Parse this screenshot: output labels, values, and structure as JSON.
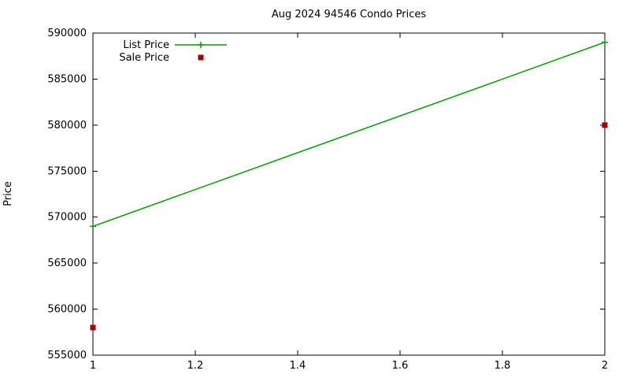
{
  "chart_data": {
    "type": "line",
    "title": "Aug 2024 94546 Condo Prices",
    "xlabel": "",
    "ylabel": "Price",
    "xlim": [
      1,
      2
    ],
    "ylim": [
      555000,
      590000
    ],
    "x_ticks": [
      1,
      1.2,
      1.4,
      1.6,
      1.8,
      2
    ],
    "y_ticks": [
      555000,
      560000,
      565000,
      570000,
      575000,
      580000,
      585000,
      590000
    ],
    "grid": false,
    "legend_position": "top-left-inside",
    "series": [
      {
        "name": "List Price",
        "type": "linespoints",
        "marker": "plus",
        "color": "#00a000",
        "x": [
          1,
          2
        ],
        "values": [
          569000,
          589000
        ]
      },
      {
        "name": "Sale Price",
        "type": "points",
        "marker": "square",
        "color": "#aa0000",
        "x": [
          1,
          2
        ],
        "values": [
          558000,
          580000
        ]
      }
    ]
  }
}
